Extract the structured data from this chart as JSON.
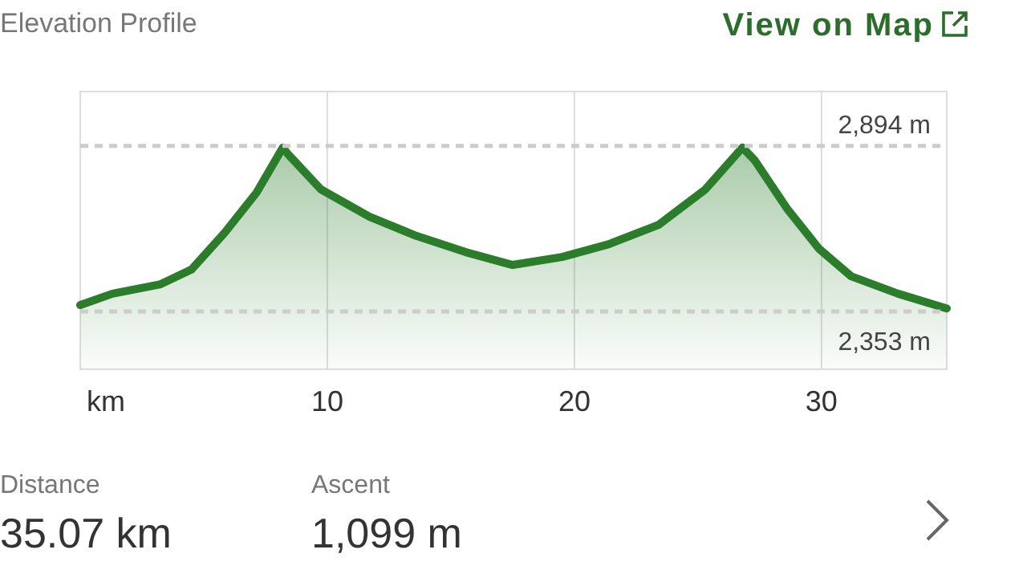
{
  "chart_data": {
    "type": "area",
    "title": "Elevation Profile",
    "xlabel": "km",
    "x": [
      0,
      1.3,
      3.25,
      4.5,
      5.84,
      7.14,
      8.2,
      8.4,
      9.74,
      11.7,
      13.6,
      15.6,
      17.5,
      19.5,
      21.4,
      23.4,
      25.3,
      26.8,
      27.3,
      28.6,
      29.9,
      31.2,
      33.1,
      35.07
    ],
    "series": [
      {
        "color": "#2b7d2b",
        "values": [
          2374,
          2411,
          2442,
          2490,
          2610,
          2742,
          2889,
          2868,
          2752,
          2663,
          2600,
          2547,
          2505,
          2531,
          2573,
          2636,
          2752,
          2889,
          2847,
          2690,
          2558,
          2468,
          2411,
          2363
        ]
      }
    ],
    "xlim": [
      0,
      35.07
    ],
    "xticks": [
      10,
      20,
      30
    ],
    "ylim": [
      2164,
      3072
    ],
    "grid": "x",
    "tick_labels": "x",
    "ref_lines": [
      {
        "axis": "y",
        "value": 2894,
        "label": "2,894 m",
        "color": "#cccccc",
        "line_style": "dashed"
      },
      {
        "axis": "y",
        "value": 2353,
        "label": "2,353 m",
        "color": "#cccccc",
        "line_style": "dashed"
      }
    ],
    "annotations": [
      "View on Map",
      "Distance",
      "35.07 km",
      "Ascent",
      "1,099 m"
    ]
  }
}
